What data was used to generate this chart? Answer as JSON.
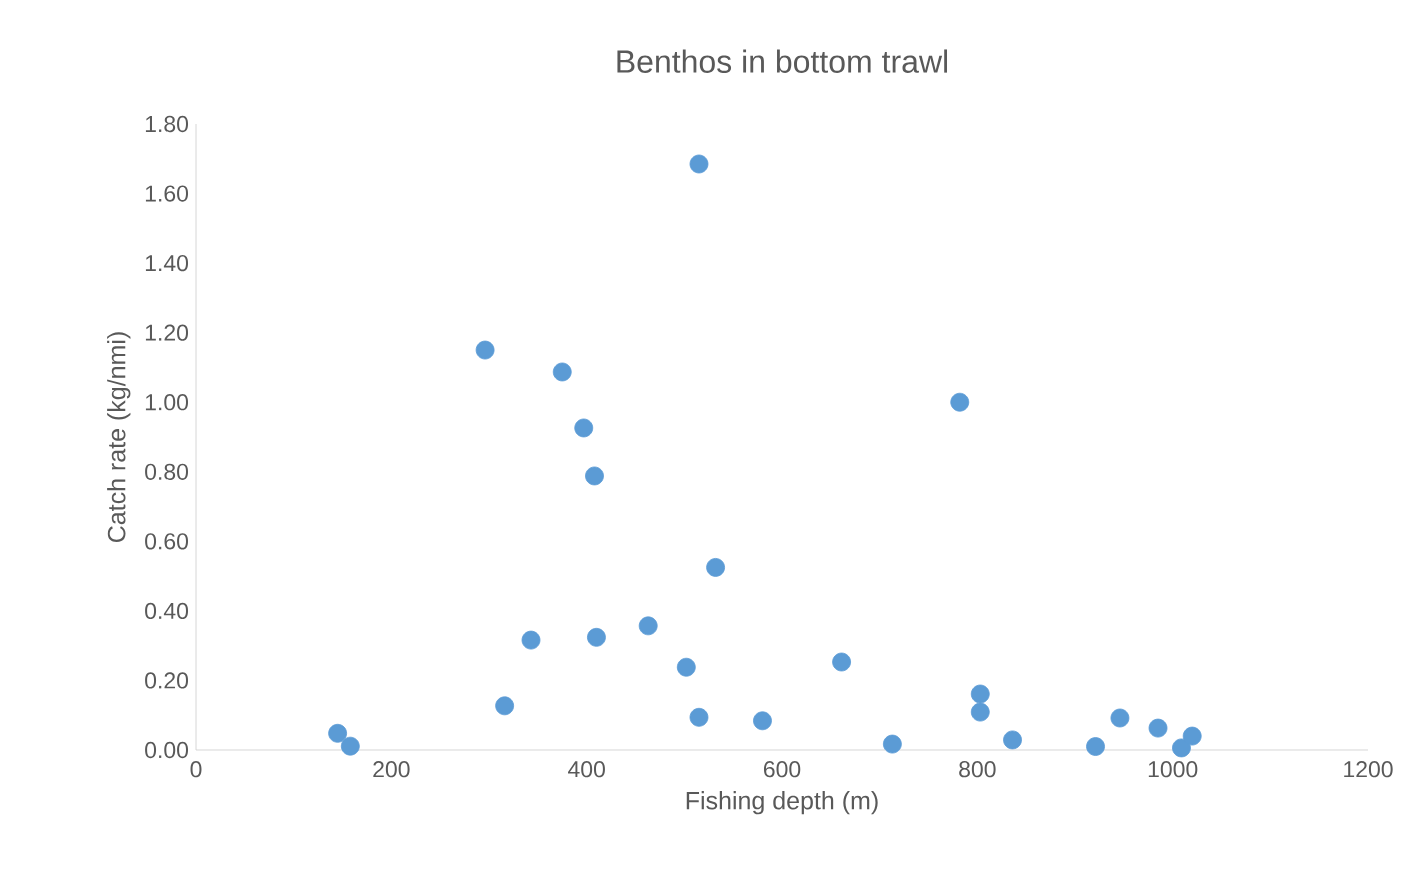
{
  "chart_data": {
    "type": "scatter",
    "title": "Benthos in bottom trawl",
    "xlabel": "Fishing depth (m)",
    "ylabel": "Catch rate (kg/nmi)",
    "x": [
      145,
      158,
      296,
      316,
      343,
      375,
      397,
      408,
      410,
      463,
      502,
      515,
      515,
      532,
      580,
      661,
      713,
      782,
      803,
      803,
      836,
      921,
      946,
      985,
      1009,
      1020
    ],
    "values": [
      0.048,
      0.011,
      1.15,
      0.127,
      0.316,
      1.087,
      0.926,
      0.788,
      0.324,
      0.357,
      0.238,
      1.685,
      0.094,
      0.525,
      0.084,
      0.253,
      0.017,
      1.0,
      0.161,
      0.109,
      0.029,
      0.01,
      0.092,
      0.063,
      0.006,
      0.04
    ],
    "color": "#5b9bd5",
    "marker": "circle",
    "xlim": [
      0,
      1200
    ],
    "xticks": [
      0,
      200,
      400,
      600,
      800,
      1000,
      1200
    ],
    "ylim": [
      0,
      1.8
    ],
    "yticks": [
      {
        "value": 0,
        "label": "0.00"
      },
      {
        "value": 0.2,
        "label": "0.20"
      },
      {
        "value": 0.4,
        "label": "0.40"
      },
      {
        "value": 0.6,
        "label": "0.60"
      },
      {
        "value": 0.8,
        "label": "0.80"
      },
      {
        "value": 1.0,
        "label": "1.00"
      },
      {
        "value": 1.2,
        "label": "1.20"
      },
      {
        "value": 1.4,
        "label": "1.40"
      },
      {
        "value": 1.6,
        "label": "1.60"
      },
      {
        "value": 1.8,
        "label": "1.80"
      }
    ]
  }
}
